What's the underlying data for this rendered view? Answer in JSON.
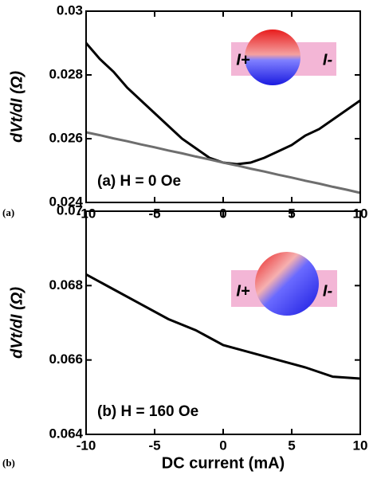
{
  "chart_data": [
    {
      "type": "line",
      "x": [
        -10,
        -9,
        -8,
        -7,
        -6,
        -5,
        -4,
        -3,
        -2,
        -1,
        0,
        1,
        2,
        3,
        4,
        5,
        6,
        7,
        8,
        9,
        10
      ],
      "series": [
        {
          "color": "#000000",
          "values": [
            0.029,
            0.0285,
            0.0281,
            0.0276,
            0.0272,
            0.0268,
            0.0264,
            0.026,
            0.0257,
            0.0254,
            0.02525,
            0.0252,
            0.02525,
            0.0254,
            0.0256,
            0.0258,
            0.0261,
            0.0263,
            0.0266,
            0.0269,
            0.0272
          ]
        },
        {
          "color": "#6e6e6e",
          "values": [
            0.0262,
            0.02611,
            0.02601,
            0.02592,
            0.02582,
            0.02573,
            0.02563,
            0.02554,
            0.02544,
            0.02535,
            0.02525,
            0.02516,
            0.02506,
            0.02497,
            0.02487,
            0.02478,
            0.02468,
            0.02459,
            0.02449,
            0.0244,
            0.0243
          ]
        }
      ],
      "xlim": [
        -10,
        10
      ],
      "xticks": [
        -10,
        -5,
        0,
        5,
        10
      ],
      "ylim": [
        0.024,
        0.03
      ],
      "yticks": [
        0.024,
        0.026,
        0.028,
        0.03
      ],
      "ylabel": "dVt/dI (Ω)",
      "annotation": "(a) H = 0 Oe",
      "inset_labels": [
        "I+",
        "I-"
      ],
      "panel_label": "(a)"
    },
    {
      "type": "line",
      "x": [
        -10,
        -8,
        -6,
        -4,
        -2,
        0,
        2,
        4,
        6,
        8,
        10
      ],
      "series": [
        {
          "color": "#000000",
          "values": [
            0.0683,
            0.0679,
            0.0675,
            0.0671,
            0.0668,
            0.0664,
            0.0662,
            0.066,
            0.0658,
            0.06555,
            0.0655
          ]
        }
      ],
      "xlim": [
        -10,
        10
      ],
      "xticks": [
        -10,
        -5,
        0,
        5,
        10
      ],
      "ylim": [
        0.064,
        0.07
      ],
      "yticks": [
        0.064,
        0.066,
        0.068,
        0.07
      ],
      "ylabel": "dVt/dI (Ω)",
      "xlabel": "DC current (mA)",
      "annotation": "(b) H = 160 Oe",
      "inset_labels": [
        "I+",
        "I-"
      ],
      "panel_label": "(b)"
    }
  ]
}
